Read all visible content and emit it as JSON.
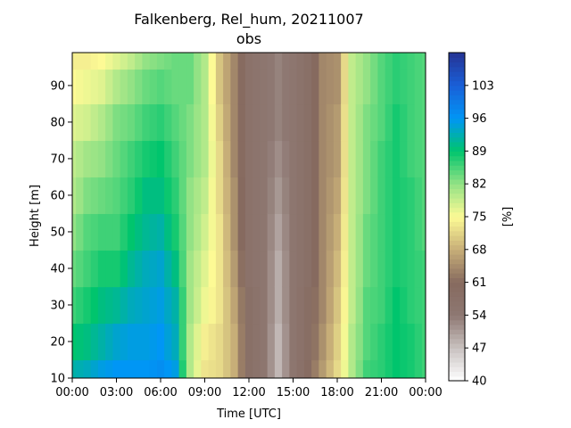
{
  "chart_data": {
    "type": "heatmap",
    "title": "Falkenberg, Rel_hum, 20211007",
    "subtitle": "obs",
    "xlabel": "Time [UTC]",
    "ylabel": "Height [m]",
    "colorbar_label": "[%]",
    "xlim": [
      0,
      24
    ],
    "ylim": [
      10,
      99
    ],
    "x_ticks": [
      0,
      3,
      6,
      9,
      12,
      15,
      18,
      21,
      24
    ],
    "x_tick_labels": [
      "00:00",
      "03:00",
      "06:00",
      "09:00",
      "12:00",
      "15:00",
      "18:00",
      "21:00",
      "00:00"
    ],
    "y_ticks": [
      10,
      20,
      30,
      40,
      50,
      60,
      70,
      80,
      90
    ],
    "y_tick_labels": [
      "10",
      "20",
      "30",
      "40",
      "50",
      "60",
      "70",
      "80",
      "90"
    ],
    "colorbar_range": [
      40,
      110
    ],
    "colorbar_ticks": [
      40,
      47,
      54,
      61,
      68,
      75,
      82,
      89,
      96,
      103
    ],
    "colorbar_tick_labels": [
      "40",
      "47",
      "54",
      "61",
      "68",
      "75",
      "82",
      "89",
      "96",
      "103"
    ],
    "colormap_stops": [
      {
        "v": 40,
        "color": "#ffffff"
      },
      {
        "v": 47,
        "color": "#c9c2c0"
      },
      {
        "v": 54,
        "color": "#8e7872"
      },
      {
        "v": 61,
        "color": "#866a5f"
      },
      {
        "v": 68,
        "color": "#c7ae78"
      },
      {
        "v": 75,
        "color": "#fdfa95"
      },
      {
        "v": 82,
        "color": "#93e285"
      },
      {
        "v": 89,
        "color": "#00c56d"
      },
      {
        "v": 96,
        "color": "#0096f5"
      },
      {
        "v": 103,
        "color": "#1a5fd8"
      },
      {
        "v": 110,
        "color": "#253494"
      }
    ],
    "heights_m": [
      10,
      20,
      30,
      40,
      50,
      60,
      70,
      80,
      90,
      99
    ],
    "times_h": [
      0,
      0.5,
      1,
      1.5,
      2,
      2.5,
      3,
      3.5,
      4,
      4.5,
      5,
      5.5,
      6,
      6.5,
      7,
      7.5,
      8,
      8.5,
      9,
      9.5,
      10,
      10.5,
      11,
      11.5,
      12,
      12.5,
      13,
      13.5,
      14,
      14.5,
      15,
      15.5,
      16,
      16.5,
      17,
      17.5,
      18,
      18.5,
      19,
      19.5,
      20,
      20.5,
      21,
      21.5,
      22,
      22.5,
      23,
      23.5,
      24
    ],
    "profile_by_time": [
      {
        "t": 0,
        "values": [
          92,
          89,
          86,
          84,
          82,
          80,
          79,
          77,
          75,
          74
        ]
      },
      {
        "t": 1,
        "values": [
          93,
          90,
          88,
          86,
          85,
          83,
          81,
          78,
          76,
          74
        ]
      },
      {
        "t": 2,
        "values": [
          95,
          92,
          90,
          88,
          86,
          84,
          82,
          80,
          77,
          75
        ]
      },
      {
        "t": 3,
        "values": [
          96,
          94,
          91,
          88,
          86,
          85,
          84,
          83,
          80,
          77
        ]
      },
      {
        "t": 4,
        "values": [
          96,
          95,
          93,
          91,
          89,
          87,
          86,
          84,
          82,
          79
        ]
      },
      {
        "t": 5,
        "values": [
          96,
          95,
          94,
          93,
          91,
          90,
          88,
          86,
          84,
          82
        ]
      },
      {
        "t": 6,
        "values": [
          97,
          96,
          95,
          94,
          92,
          90,
          89,
          87,
          85,
          83
        ]
      },
      {
        "t": 7,
        "values": [
          95,
          93,
          92,
          90,
          88,
          87,
          86,
          85,
          84,
          84
        ]
      },
      {
        "t": 8,
        "values": [
          80,
          80,
          81,
          81,
          82,
          82,
          83,
          83,
          84,
          84
        ]
      },
      {
        "t": 9,
        "values": [
          73,
          74,
          76,
          77,
          78,
          79,
          80,
          80,
          80,
          80
        ]
      },
      {
        "t": 10,
        "values": [
          72,
          72,
          73,
          73,
          73,
          72,
          72,
          71,
          70,
          70
        ]
      },
      {
        "t": 11,
        "values": [
          68,
          68,
          67,
          66,
          65,
          65,
          64,
          64,
          64,
          64
        ]
      },
      {
        "t": 12,
        "values": [
          58,
          58,
          58,
          57,
          57,
          57,
          57,
          57,
          57,
          57
        ]
      },
      {
        "t": 13,
        "values": [
          55,
          55,
          55,
          55,
          55,
          55,
          55,
          55,
          55,
          55
        ]
      },
      {
        "t": 14,
        "values": [
          48,
          48,
          49,
          49,
          50,
          51,
          52,
          53,
          53,
          53
        ]
      },
      {
        "t": 15,
        "values": [
          55,
          55,
          55,
          55,
          55,
          55,
          55,
          55,
          55,
          55
        ]
      },
      {
        "t": 16,
        "values": [
          60,
          59,
          59,
          58,
          58,
          58,
          58,
          58,
          58,
          58
        ]
      },
      {
        "t": 17,
        "values": [
          66,
          65,
          64,
          64,
          64,
          64,
          64,
          64,
          64,
          64
        ]
      },
      {
        "t": 18,
        "values": [
          72,
          71,
          70,
          69,
          68,
          67,
          66,
          66,
          65,
          65
        ]
      },
      {
        "t": 19,
        "values": [
          80,
          80,
          79,
          79,
          79,
          79,
          79,
          79,
          79,
          79
        ]
      },
      {
        "t": 20,
        "values": [
          86,
          85,
          85,
          84,
          84,
          83,
          83,
          83,
          82,
          82
        ]
      },
      {
        "t": 21,
        "values": [
          87,
          87,
          86,
          86,
          86,
          86,
          86,
          85,
          85,
          85
        ]
      },
      {
        "t": 22,
        "values": [
          89,
          89,
          89,
          88,
          88,
          88,
          88,
          88,
          87,
          87
        ]
      },
      {
        "t": 23,
        "values": [
          88,
          88,
          87,
          87,
          87,
          87,
          86,
          86,
          86,
          86
        ]
      },
      {
        "t": 24,
        "values": [
          86,
          86,
          86,
          86,
          85,
          85,
          85,
          85,
          85,
          85
        ]
      }
    ]
  }
}
